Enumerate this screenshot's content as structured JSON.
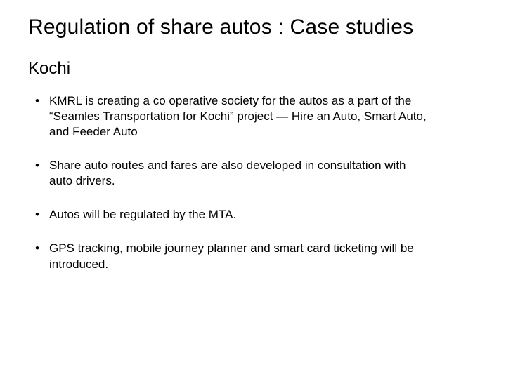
{
  "slide": {
    "title": "Regulation of share autos : Case studies",
    "subtitle": "Kochi",
    "bullets": [
      "KMRL is creating a co operative society for the autos as a part of the “Seamles Transportation for Kochi” project — Hire an Auto, Smart Auto, and Feeder Auto",
      "Share auto routes and fares are also developed in consultation with auto drivers.",
      "Autos will be regulated by the MTA.",
      "GPS tracking, mobile journey planner and smart card ticketing will be introduced."
    ],
    "styling": {
      "background_color": "#ffffff",
      "text_color": "#000000",
      "title_fontsize": 30,
      "subtitle_fontsize": 24,
      "body_fontsize": 17,
      "font_family": "Trebuchet MS",
      "slide_width": 720,
      "slide_height": 540,
      "bullet_char": "•"
    }
  }
}
